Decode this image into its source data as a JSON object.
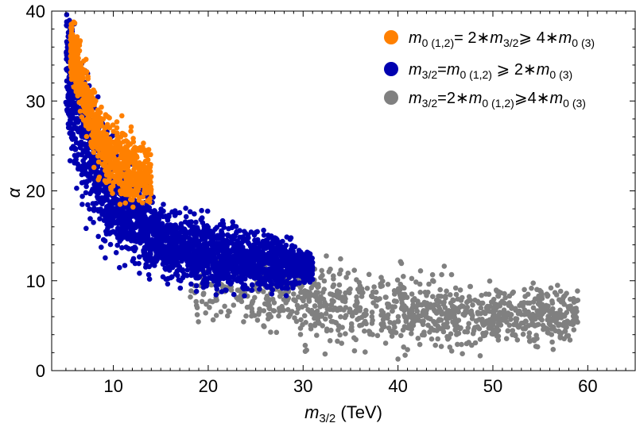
{
  "chart_data": {
    "type": "scatter",
    "title": "",
    "xlabel": {
      "symbol": "m",
      "sub": "3/2",
      "unit": " (TeV)"
    },
    "ylabel": "α",
    "xlim": [
      3.5,
      65
    ],
    "ylim": [
      0,
      40
    ],
    "xticks": [
      10,
      20,
      30,
      40,
      50,
      60
    ],
    "yticks": [
      0,
      10,
      20,
      30,
      40
    ],
    "grid": false,
    "legend_position": "top-right",
    "series": [
      {
        "name": "gray",
        "color": "#808080",
        "label_parts": [
          {
            "t": "m",
            "it": true
          },
          {
            "t": "3/2",
            "sub": true
          },
          {
            "t": "=2∗"
          },
          {
            "t": "m",
            "it": true
          },
          {
            "t": "0 (1,2)",
            "sub": true
          },
          {
            "t": "⩾4∗"
          },
          {
            "t": "m",
            "it": true
          },
          {
            "t": "0 (3)",
            "sub": true
          }
        ],
        "band": [
          [
            18,
            9.5,
            6
          ],
          [
            25,
            8.5,
            6.5
          ],
          [
            30,
            8,
            7
          ],
          [
            35,
            7.2,
            7
          ],
          [
            40,
            6.6,
            6.5
          ],
          [
            45,
            6.3,
            6
          ],
          [
            50,
            6.1,
            5.5
          ],
          [
            55,
            6.2,
            5
          ],
          [
            59,
            6.2,
            4
          ]
        ]
      },
      {
        "name": "blue",
        "color": "#0000b0",
        "label_parts": [
          {
            "t": "m",
            "it": true
          },
          {
            "t": "3/2",
            "sub": true
          },
          {
            "t": "="
          },
          {
            "t": "m",
            "it": true
          },
          {
            "t": "0 (1,2)",
            "sub": true
          },
          {
            "t": " ⩾ 2∗"
          },
          {
            "t": "m",
            "it": true
          },
          {
            "t": "0 (3)",
            "sub": true
          }
        ],
        "band": [
          [
            5,
            34,
            11
          ],
          [
            6,
            29,
            12
          ],
          [
            8,
            23,
            10
          ],
          [
            10,
            19,
            8
          ],
          [
            13,
            16,
            6
          ],
          [
            16,
            13.8,
            5.5
          ],
          [
            20,
            13,
            5.5
          ],
          [
            24,
            12.4,
            5
          ],
          [
            28,
            11.8,
            4
          ],
          [
            31,
            11.5,
            2.5
          ]
        ]
      },
      {
        "name": "orange",
        "color": "#ff8000",
        "label_parts": [
          {
            "t": "m",
            "it": true
          },
          {
            "t": "0 (1,2)",
            "sub": true
          },
          {
            "t": "= 2∗"
          },
          {
            "t": "m",
            "it": true
          },
          {
            "t": "3/2",
            "sub": true
          },
          {
            "t": "⩾ 4∗"
          },
          {
            "t": "m",
            "it": true
          },
          {
            "t": "0 (3)",
            "sub": true
          }
        ],
        "band": [
          [
            5.5,
            36,
            5
          ],
          [
            6.5,
            32.5,
            5
          ],
          [
            7.5,
            28.5,
            5
          ],
          [
            8.5,
            26,
            5.5
          ],
          [
            10,
            23.5,
            6
          ],
          [
            12,
            22,
            6
          ],
          [
            14,
            21.5,
            4
          ]
        ]
      }
    ]
  }
}
